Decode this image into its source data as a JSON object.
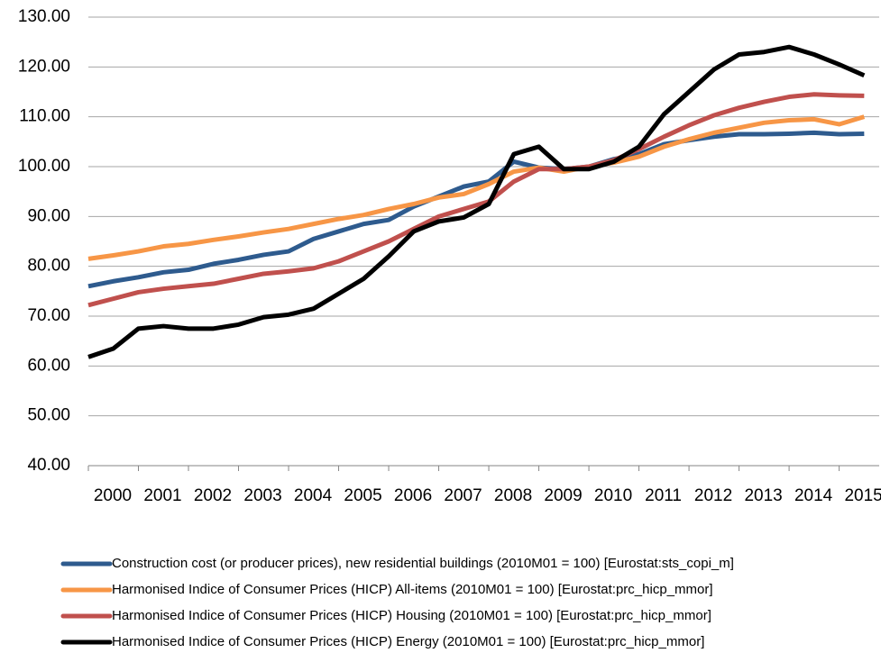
{
  "chart_data": {
    "type": "line",
    "x": [
      2000,
      2000.5,
      2001,
      2001.5,
      2002,
      2002.5,
      2003,
      2003.5,
      2004,
      2004.5,
      2005,
      2005.5,
      2006,
      2006.5,
      2007,
      2007.5,
      2008,
      2008.5,
      2009,
      2009.5,
      2010,
      2010.5,
      2011,
      2011.5,
      2012,
      2012.5,
      2013,
      2013.5,
      2014,
      2014.5,
      2015,
      2015.5
    ],
    "xlim": [
      2000,
      2015.8
    ],
    "xticks": [
      2000,
      2001,
      2002,
      2003,
      2004,
      2005,
      2006,
      2007,
      2008,
      2009,
      2010,
      2011,
      2012,
      2013,
      2014,
      2015
    ],
    "ylim": [
      40,
      130
    ],
    "yticks": [
      {
        "value": 40,
        "label": "40.00"
      },
      {
        "value": 50,
        "label": "50.00"
      },
      {
        "value": 60,
        "label": "60.00"
      },
      {
        "value": 70,
        "label": "70.00"
      },
      {
        "value": 80,
        "label": "80.00"
      },
      {
        "value": 90,
        "label": "90.00"
      },
      {
        "value": 100,
        "label": "100.00"
      },
      {
        "value": 110,
        "label": "110.00"
      },
      {
        "value": 120,
        "label": "120.00"
      },
      {
        "value": 130,
        "label": "130.00"
      }
    ],
    "grid": true,
    "series": [
      {
        "name": "Construction cost (or producer prices), new residential buildings (2010M01 = 100) [Eurostat:sts_copi_m]",
        "color": "#2e5b8e",
        "values": [
          76,
          77,
          77.8,
          78.8,
          79.3,
          80.5,
          81.3,
          82.3,
          83,
          85.5,
          87,
          88.5,
          89.3,
          92,
          94,
          96,
          97,
          101,
          99.8,
          99.5,
          100,
          101.5,
          102.5,
          104.5,
          105.3,
          106,
          106.5,
          106.5,
          106.6,
          106.8,
          106.5,
          106.6
        ]
      },
      {
        "name": "Harmonised Indice of Consumer Prices (HICP) All-items (2010M01 = 100) [Eurostat:prc_hicp_mmor]",
        "color": "#f79646",
        "values": [
          81.5,
          82.2,
          83,
          84,
          84.5,
          85.3,
          86,
          86.8,
          87.5,
          88.5,
          89.5,
          90.3,
          91.5,
          92.5,
          93.8,
          94.5,
          96.5,
          99,
          99.8,
          99,
          100,
          100.8,
          102,
          104,
          105.5,
          106.8,
          107.8,
          108.8,
          109.3,
          109.5,
          108.5,
          110
        ]
      },
      {
        "name": "Harmonised Indice of Consumer Prices (HICP) Housing (2010M01 = 100) [Eurostat:prc_hicp_mmor]",
        "color": "#c0504d",
        "values": [
          72.2,
          73.5,
          74.8,
          75.5,
          76,
          76.5,
          77.5,
          78.5,
          79,
          79.6,
          81,
          83,
          85,
          87.5,
          90,
          91.5,
          93,
          97,
          99.5,
          99.5,
          100,
          101.3,
          103.5,
          106,
          108.3,
          110.3,
          111.8,
          113,
          114,
          114.5,
          114.3,
          114.2
        ]
      },
      {
        "name": "Harmonised Indice of Consumer Prices (HICP) Energy (2010M01 = 100) [Eurostat:prc_hicp_mmor]",
        "color": "#000000",
        "values": [
          61.8,
          63.5,
          67.5,
          68,
          67.5,
          67.5,
          68.3,
          69.8,
          70.3,
          71.5,
          74.5,
          77.5,
          82,
          87,
          89,
          89.8,
          92.5,
          102.5,
          104,
          99.5,
          99.5,
          101,
          104,
          110.5,
          115,
          119.5,
          122.5,
          123,
          124,
          122.5,
          120.5,
          118.3
        ]
      }
    ]
  }
}
